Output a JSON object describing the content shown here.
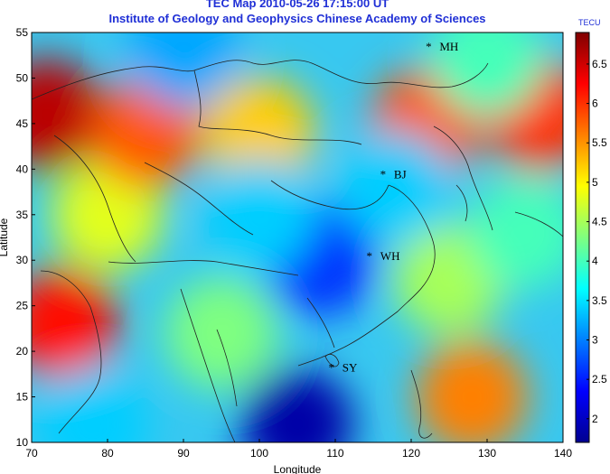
{
  "chart_data": {
    "type": "heatmap",
    "title": "TEC Map 2010-05-26 17:15:00 UT",
    "subtitle": "Institute of Geology and Geophysics Chinese Academy of Sciences",
    "xlabel": "Longitude",
    "ylabel": "Latitude",
    "xlim": [
      70,
      140
    ],
    "ylim": [
      10,
      55
    ],
    "x_ticks": [
      70,
      80,
      90,
      100,
      110,
      120,
      130,
      140
    ],
    "y_ticks": [
      10,
      15,
      20,
      25,
      30,
      35,
      40,
      45,
      50,
      55
    ],
    "colorbar": {
      "title": "TECU",
      "range": [
        1.7,
        6.9
      ],
      "ticks": [
        2,
        2.5,
        3,
        3.5,
        4,
        4.5,
        5,
        5.5,
        6,
        6.5
      ],
      "colormap": "jet"
    },
    "stations": [
      {
        "label": "MH",
        "lon": 122.3,
        "lat": 53.5
      },
      {
        "label": "BJ",
        "lon": 116.3,
        "lat": 39.5
      },
      {
        "label": "WH",
        "lon": 114.5,
        "lat": 30.5
      },
      {
        "label": "SY",
        "lon": 109.5,
        "lat": 18.3
      }
    ],
    "features": [
      {
        "lon": 72,
        "lat": 46,
        "value": 6.6
      },
      {
        "lon": 74,
        "lat": 23,
        "value": 6.2
      },
      {
        "lon": 80,
        "lat": 35,
        "value": 4.8
      },
      {
        "lon": 85,
        "lat": 44,
        "value": 5.8
      },
      {
        "lon": 100,
        "lat": 44,
        "value": 5.2
      },
      {
        "lon": 122,
        "lat": 45,
        "value": 5.8
      },
      {
        "lon": 137,
        "lat": 46,
        "value": 6.0
      },
      {
        "lon": 128,
        "lat": 15,
        "value": 5.6
      },
      {
        "lon": 125,
        "lat": 28,
        "value": 4.5
      },
      {
        "lon": 108,
        "lat": 30,
        "value": 2.6
      },
      {
        "lon": 100,
        "lat": 35,
        "value": 3.4
      },
      {
        "lon": 105,
        "lat": 12,
        "value": 1.9
      },
      {
        "lon": 90,
        "lat": 53,
        "value": 3.2
      },
      {
        "lon": 130,
        "lat": 52,
        "value": 4.0
      },
      {
        "lon": 95,
        "lat": 22,
        "value": 4.3
      },
      {
        "lon": 78,
        "lat": 12,
        "value": 3.4
      },
      {
        "lon": 118,
        "lat": 38,
        "value": 3.4
      },
      {
        "lon": 135,
        "lat": 33,
        "value": 4.0
      }
    ]
  }
}
